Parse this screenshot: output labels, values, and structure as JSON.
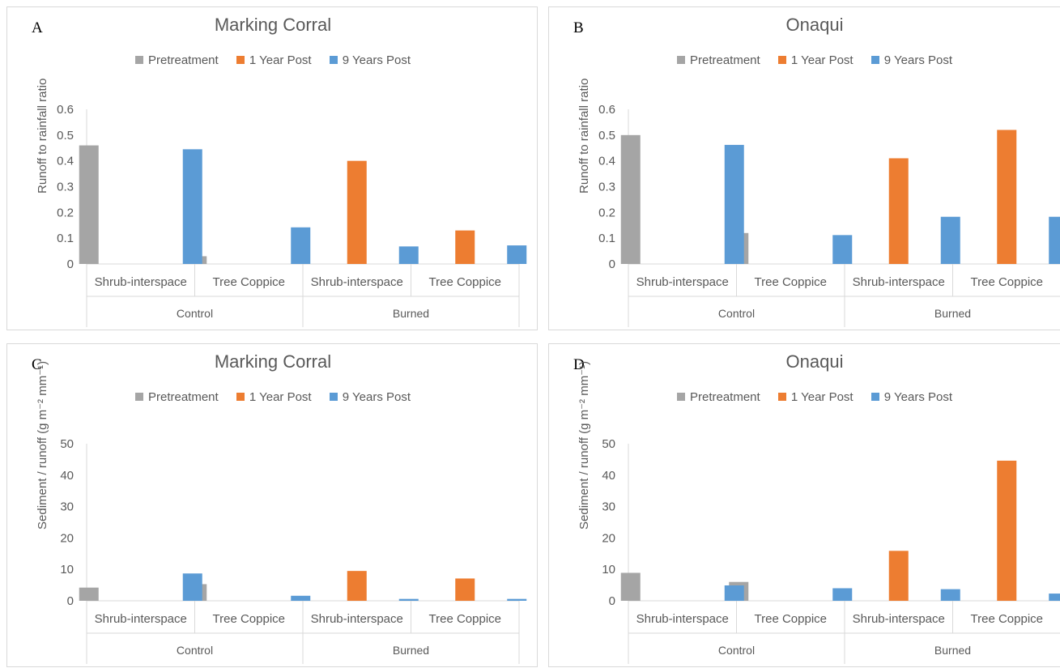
{
  "colors": {
    "pretreatment": "#a5a5a5",
    "one_year": "#ed7d31",
    "nine_years": "#5b9bd5",
    "axis": "#d9d9d9",
    "text": "#595959"
  },
  "chart_data": [
    {
      "type": "bar",
      "panel_label": "A",
      "title": "Marking Corral",
      "ylabel": "Runoff to rainfall ratio",
      "ylim": [
        0,
        0.6
      ],
      "yticks": [
        "0",
        "0.1",
        "0.2",
        "0.3",
        "0.4",
        "0.5",
        "0.6"
      ],
      "groups": [
        "Control",
        "Burned"
      ],
      "categories": [
        "Shrub-interspace",
        "Tree Coppice",
        "Shrub-interspace",
        "Tree Coppice"
      ],
      "legend_position": "top",
      "series": [
        {
          "name": "Pretreatment",
          "values": [
            0.46,
            0.03,
            null,
            null
          ]
        },
        {
          "name": "1 Year Post",
          "values": [
            null,
            null,
            0.4,
            0.13
          ]
        },
        {
          "name": "9 Years Post",
          "values": [
            0.445,
            0.142,
            0.068,
            0.072
          ]
        }
      ]
    },
    {
      "type": "bar",
      "panel_label": "B",
      "title": "Onaqui",
      "ylabel": "Runoff to rainfall ratio",
      "ylim": [
        0,
        0.6
      ],
      "yticks": [
        "0",
        "0.1",
        "0.2",
        "0.3",
        "0.4",
        "0.5",
        "0.6"
      ],
      "groups": [
        "Control",
        "Burned"
      ],
      "categories": [
        "Shrub-interspace",
        "Tree Coppice",
        "Shrub-interspace",
        "Tree Coppice"
      ],
      "legend_position": "top",
      "series": [
        {
          "name": "Pretreatment",
          "values": [
            0.5,
            0.12,
            null,
            null
          ]
        },
        {
          "name": "1 Year Post",
          "values": [
            null,
            null,
            0.41,
            0.52
          ]
        },
        {
          "name": "9 Years Post",
          "values": [
            0.462,
            0.112,
            0.183,
            0.183
          ]
        }
      ]
    },
    {
      "type": "bar",
      "panel_label": "C",
      "title": "Marking Corral",
      "ylabel": "Sediment / runoff (g m⁻² mm⁻¹)",
      "ylim": [
        0,
        50
      ],
      "yticks": [
        "0",
        "10",
        "20",
        "30",
        "40",
        "50"
      ],
      "groups": [
        "Control",
        "Burned"
      ],
      "categories": [
        "Shrub-interspace",
        "Tree Coppice",
        "Shrub-interspace",
        "Tree Coppice"
      ],
      "legend_position": "top",
      "series": [
        {
          "name": "Pretreatment",
          "values": [
            4.2,
            5.3,
            null,
            null
          ]
        },
        {
          "name": "1 Year Post",
          "values": [
            null,
            null,
            9.5,
            7.1
          ]
        },
        {
          "name": "9 Years Post",
          "values": [
            8.7,
            1.6,
            0.6,
            0.6
          ]
        }
      ]
    },
    {
      "type": "bar",
      "panel_label": "D",
      "title": "Onaqui",
      "ylabel": "Sediment / runoff (g m⁻² mm⁻¹)",
      "ylim": [
        0,
        50
      ],
      "yticks": [
        "0",
        "10",
        "20",
        "30",
        "40",
        "50"
      ],
      "groups": [
        "Control",
        "Burned"
      ],
      "categories": [
        "Shrub-interspace",
        "Tree Coppice",
        "Shrub-interspace",
        "Tree Coppice"
      ],
      "legend_position": "top",
      "series": [
        {
          "name": "Pretreatment",
          "values": [
            8.9,
            6.0,
            null,
            null
          ]
        },
        {
          "name": "1 Year Post",
          "values": [
            null,
            null,
            15.9,
            44.6
          ]
        },
        {
          "name": "9 Years Post",
          "values": [
            4.9,
            4.0,
            3.7,
            2.3
          ]
        }
      ]
    }
  ]
}
